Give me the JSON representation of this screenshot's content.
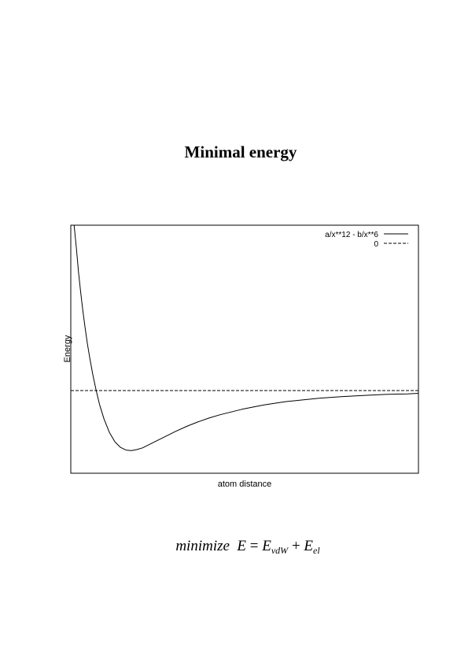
{
  "page": {
    "title": "Minimal  energy"
  },
  "formula": {
    "verb": "minimize",
    "lhs": "E",
    "equals": "=",
    "term1_base": "E",
    "term1_sub": "vdW",
    "plus": "+",
    "term2_base": "E",
    "term2_sub": "el"
  },
  "chart_data": {
    "type": "line",
    "title": "",
    "xlabel": "atom distance",
    "ylabel": "Energy",
    "xlim": [
      0.95,
      4.1
    ],
    "ylim": [
      -1.5,
      3.0
    ],
    "grid": false,
    "legend_position": "top-right",
    "series": [
      {
        "name": "a/x**12 - b/x**6",
        "style": "solid",
        "x": [
          0.98,
          1.0,
          1.02,
          1.04,
          1.06,
          1.08,
          1.1,
          1.12,
          1.15,
          1.18,
          1.21,
          1.25,
          1.3,
          1.35,
          1.4,
          1.45,
          1.5,
          1.55,
          1.6,
          1.65,
          1.7,
          1.8,
          1.9,
          2.0,
          2.1,
          2.2,
          2.3,
          2.4,
          2.5,
          2.6,
          2.7,
          2.8,
          2.9,
          3.0,
          3.2,
          3.4,
          3.6,
          3.8,
          4.0,
          4.1
        ],
        "y": [
          3.0,
          2.6,
          2.15,
          1.78,
          1.44,
          1.14,
          0.86,
          0.61,
          0.28,
          0.0,
          -0.25,
          -0.51,
          -0.76,
          -0.93,
          -1.03,
          -1.08,
          -1.09,
          -1.07,
          -1.04,
          -0.99,
          -0.94,
          -0.84,
          -0.74,
          -0.65,
          -0.57,
          -0.5,
          -0.44,
          -0.39,
          -0.34,
          -0.3,
          -0.26,
          -0.23,
          -0.2,
          -0.18,
          -0.14,
          -0.11,
          -0.09,
          -0.07,
          -0.06,
          -0.05
        ]
      },
      {
        "name": "0",
        "style": "dashed",
        "x": [
          0.95,
          4.1
        ],
        "y": [
          0,
          0
        ]
      }
    ]
  }
}
